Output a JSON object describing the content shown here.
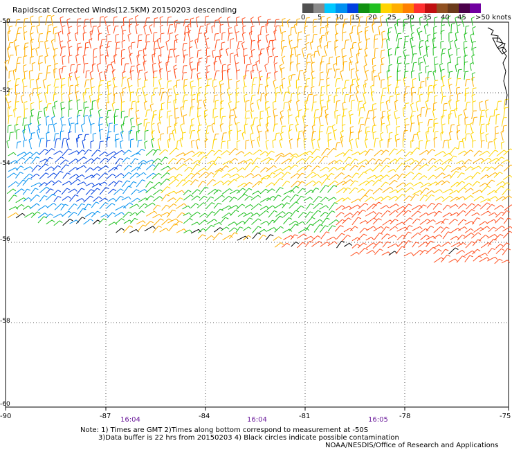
{
  "title": "Rapidscat Corrected Winds(12.5KM) 20150203 descending",
  "colorbar": {
    "colors": [
      "#505050",
      "#8a8a8a",
      "#00c8ff",
      "#0090f0",
      "#0040e0",
      "#109010",
      "#20c020",
      "#ffd400",
      "#ffae00",
      "#ff8000",
      "#ff3030",
      "#c01010",
      "#905020",
      "#6a3a1a",
      "#4a004a",
      "#7000a0"
    ],
    "labels": [
      "0",
      "5",
      "10",
      "15",
      "20",
      "25",
      "30",
      "35",
      "40",
      "45",
      ">50 knots"
    ]
  },
  "axes": {
    "lon_labels": [
      "-90",
      "-87",
      "-84",
      "-81",
      "-78",
      "-75"
    ],
    "lat_labels": [
      "-50",
      "-52",
      "-54",
      "-56",
      "-58",
      "-60"
    ]
  },
  "times": [
    "16:04",
    "16:04",
    "16:05"
  ],
  "notes": [
    "Note: 1) Times are GMT 2)Times along bottom correspond to measurement at -50S",
    "3)Data buffer is 22 hrs from 20150203 4) Black circles indicate possible contamination",
    "NOAA/NESDIS/Office of Research and Applications"
  ]
}
